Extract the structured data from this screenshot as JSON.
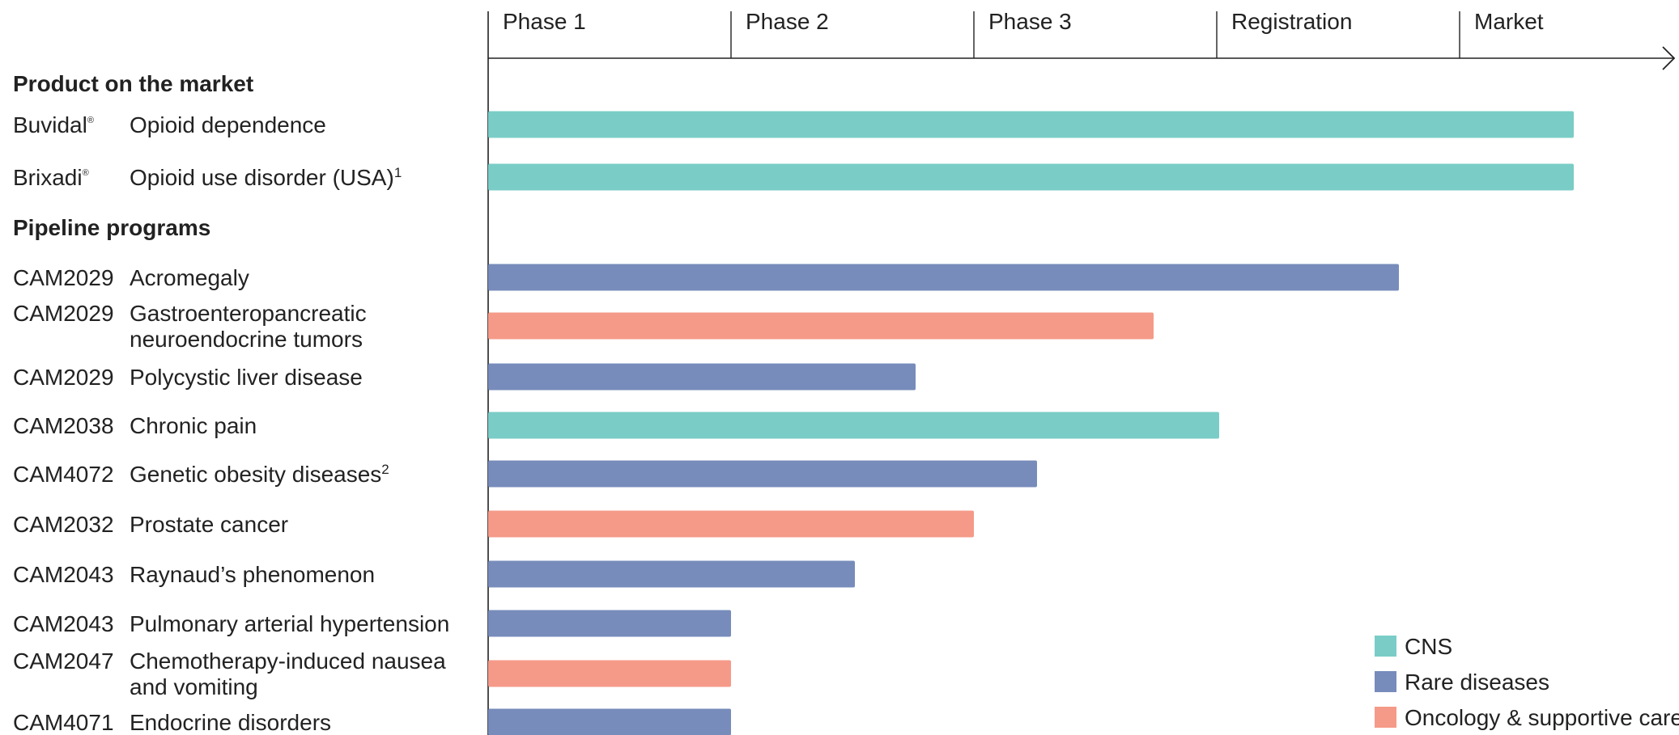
{
  "chart_data": {
    "type": "bar",
    "orientation": "horizontal",
    "stages": [
      "Phase 1",
      "Phase 2",
      "Phase 3",
      "Registration",
      "Market"
    ],
    "sections": [
      {
        "title": "Product on the market",
        "rows": [
          {
            "product": "Buvidal",
            "mark": "®",
            "indication": [
              "Opioid dependence"
            ],
            "footnote": "",
            "category": "CNS",
            "progress": 4.47
          },
          {
            "product": "Brixadi",
            "mark": "®",
            "indication": [
              "Opioid use disorder (USA)"
            ],
            "footnote": "1",
            "category": "CNS",
            "progress": 4.47
          }
        ]
      },
      {
        "title": "Pipeline programs",
        "rows": [
          {
            "product": "CAM2029",
            "mark": "",
            "indication": [
              "Acromegaly"
            ],
            "footnote": "",
            "category": "Rare diseases",
            "progress": 3.75
          },
          {
            "product": "CAM2029",
            "mark": "",
            "indication": [
              "Gastroenteropancreatic",
              "neuroendocrine tumors"
            ],
            "footnote": "",
            "category": "Oncology & supportive care",
            "progress": 2.74
          },
          {
            "product": "CAM2029",
            "mark": "",
            "indication": [
              "Polycystic liver disease"
            ],
            "footnote": "",
            "category": "Rare diseases",
            "progress": 1.76
          },
          {
            "product": "CAM2038",
            "mark": "",
            "indication": [
              "Chronic pain"
            ],
            "footnote": "",
            "category": "CNS",
            "progress": 3.01
          },
          {
            "product": "CAM4072",
            "mark": "",
            "indication": [
              "Genetic obesity diseases"
            ],
            "footnote": "2",
            "category": "Rare diseases",
            "progress": 2.26
          },
          {
            "product": "CAM2032",
            "mark": "",
            "indication": [
              "Prostate cancer"
            ],
            "footnote": "",
            "category": "Oncology & supportive care",
            "progress": 2.0
          },
          {
            "product": "CAM2043",
            "mark": "",
            "indication": [
              "Raynaud’s phenomenon"
            ],
            "footnote": "",
            "category": "Rare diseases",
            "progress": 1.51
          },
          {
            "product": "CAM2043",
            "mark": "",
            "indication": [
              "Pulmonary arterial hypertension"
            ],
            "footnote": "",
            "category": "Rare diseases",
            "progress": 1.0
          },
          {
            "product": "CAM2047",
            "mark": "",
            "indication": [
              "Chemotherapy-induced nausea",
              "and vomiting"
            ],
            "footnote": "",
            "category": "Oncology & supportive care",
            "progress": 1.0
          },
          {
            "product": "CAM4071",
            "mark": "",
            "indication": [
              "Endocrine disorders"
            ],
            "footnote": "",
            "category": "Rare diseases",
            "progress": 1.0
          }
        ]
      }
    ],
    "legend": [
      {
        "name": "CNS",
        "color": "#79cdc6"
      },
      {
        "name": "Rare diseases",
        "color": "#778cbb"
      },
      {
        "name": "Oncology & supportive care",
        "color": "#f59a88"
      }
    ],
    "legend_position": "bottom-right",
    "axis_color": "#222222",
    "grid": false
  }
}
